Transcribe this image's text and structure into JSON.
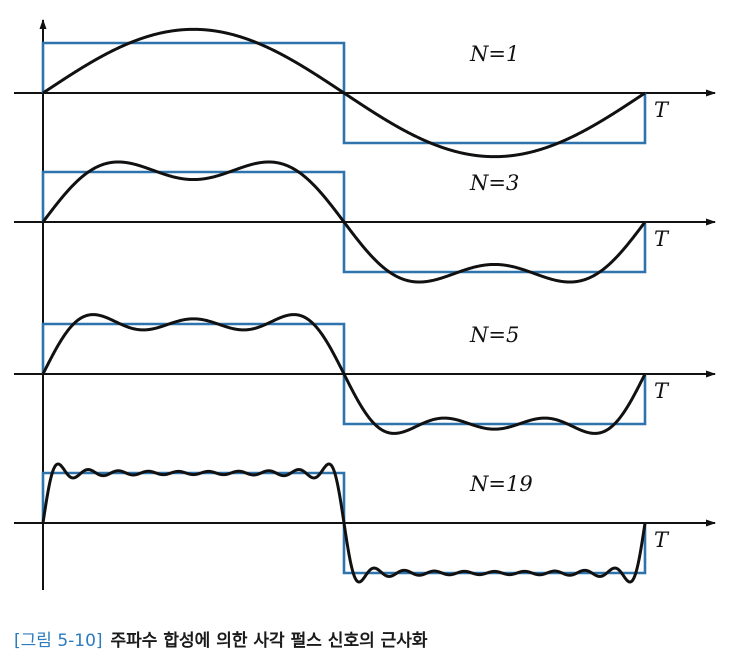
{
  "panels": [
    {
      "n_label": "N=1",
      "n_value": 1,
      "t_label": "T"
    },
    {
      "n_label": "N=3",
      "n_value": 3,
      "t_label": "T"
    },
    {
      "n_label": "N=5",
      "n_value": 5,
      "t_label": "T"
    },
    {
      "n_label": "N=19",
      "n_value": 19,
      "t_label": "T"
    }
  ],
  "caption": {
    "number": "[그림 5-10]",
    "text": "주파수 합성에 의한 사각 펄스 신호의 근사화"
  },
  "colors": {
    "square_pulse": "#2f73ad",
    "approximation": "#111111",
    "axis": "#111111"
  }
}
